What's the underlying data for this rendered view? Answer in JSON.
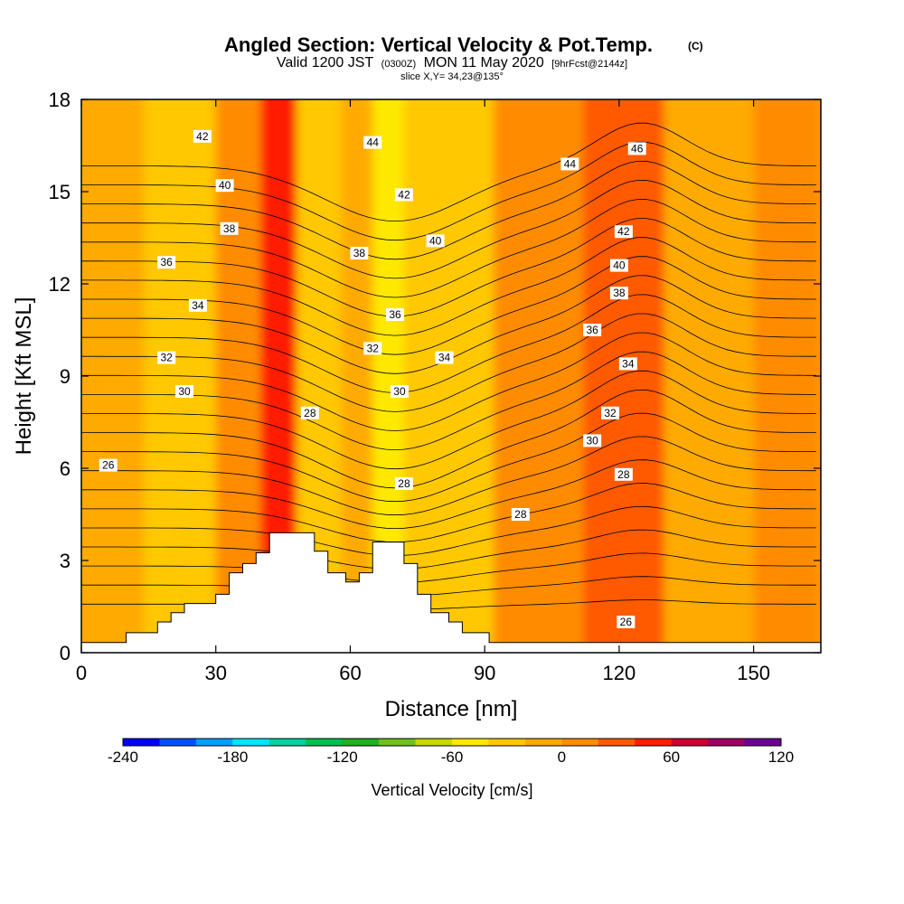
{
  "title": {
    "main": "Angled Section: Vertical Velocity & Pot.Temp.",
    "unit_tag": "(C)",
    "valid_part1": "Valid 1200 JST",
    "valid_small": "(0300Z)",
    "valid_part2": "MON 11 May 2020",
    "fcst_small": "[9hrFcst@2144z]",
    "slice": "slice X,Y= 34,23@135°"
  },
  "chart_data": {
    "type": "heatmap",
    "xlabel": "Distance [nm]",
    "ylabel": "Height [Kft MSL]",
    "xlim": [
      0,
      165
    ],
    "ylim": [
      0,
      18
    ],
    "x_ticks": [
      0,
      30,
      60,
      90,
      120,
      150
    ],
    "y_ticks": [
      0,
      3,
      6,
      9,
      12,
      15,
      18
    ],
    "colorbar": {
      "label": "Vertical Velocity [cm/s]",
      "min": -240,
      "max": 120,
      "step": 20,
      "tick_values": [
        -240,
        -180,
        -120,
        -60,
        0,
        60,
        120
      ],
      "tick_labels": [
        "-240",
        "-180",
        "-120",
        "-60",
        "0",
        "60",
        "120"
      ],
      "colors": [
        "#0000ff",
        "#0050ff",
        "#00a0ff",
        "#00e6ff",
        "#00d2a0",
        "#00c050",
        "#20b020",
        "#70c020",
        "#c8d800",
        "#ffe800",
        "#ffc800",
        "#ffaa00",
        "#ff8c00",
        "#ff5a00",
        "#ff1e00",
        "#d20032",
        "#a00064",
        "#6e0096"
      ]
    },
    "field_bands": [
      {
        "x": [
          0,
          14
        ],
        "w": 10,
        "shade": "#ffaa00"
      },
      {
        "x": [
          14,
          30
        ],
        "w": -5,
        "shade": "#ffc800"
      },
      {
        "x": [
          30,
          40
        ],
        "w": 15,
        "shade": "#ff8c00"
      },
      {
        "x": [
          40,
          48
        ],
        "w": 55,
        "shade": "#ff1e00"
      },
      {
        "x": [
          48,
          58
        ],
        "w": -10,
        "shade": "#ffc800"
      },
      {
        "x": [
          58,
          65
        ],
        "w": 10,
        "shade": "#ffaa00"
      },
      {
        "x": [
          65,
          72
        ],
        "w": -45,
        "shade": "#ffe800"
      },
      {
        "x": [
          72,
          92
        ],
        "w": -5,
        "shade": "#ffc800"
      },
      {
        "x": [
          92,
          112
        ],
        "w": 20,
        "shade": "#ff8c00"
      },
      {
        "x": [
          112,
          130
        ],
        "w": 35,
        "shade": "#ff5a00"
      },
      {
        "x": [
          130,
          150
        ],
        "w": 10,
        "shade": "#ffaa00"
      },
      {
        "x": [
          150,
          165
        ],
        "w": 5,
        "shade": "#ff8c00"
      }
    ],
    "contour_interval": 1,
    "contour_labels": [
      {
        "value": "26",
        "x": 6,
        "y": 6.1
      },
      {
        "value": "28",
        "x": 51,
        "y": 7.8
      },
      {
        "value": "28",
        "x": 72,
        "y": 5.5
      },
      {
        "value": "28",
        "x": 98,
        "y": 4.5
      },
      {
        "value": "28",
        "x": 121,
        "y": 5.8
      },
      {
        "value": "26",
        "x": 121.5,
        "y": 1.0
      },
      {
        "value": "30",
        "x": 23,
        "y": 8.5
      },
      {
        "value": "30",
        "x": 71,
        "y": 8.5
      },
      {
        "value": "30",
        "x": 114,
        "y": 6.9
      },
      {
        "value": "32",
        "x": 19,
        "y": 9.6
      },
      {
        "value": "32",
        "x": 65,
        "y": 9.9
      },
      {
        "value": "32",
        "x": 118,
        "y": 7.8
      },
      {
        "value": "34",
        "x": 26,
        "y": 11.3
      },
      {
        "value": "34",
        "x": 81,
        "y": 9.6
      },
      {
        "value": "34",
        "x": 122,
        "y": 9.4
      },
      {
        "value": "36",
        "x": 19,
        "y": 12.7
      },
      {
        "value": "36",
        "x": 70,
        "y": 11.0
      },
      {
        "value": "36",
        "x": 114,
        "y": 10.5
      },
      {
        "value": "38",
        "x": 33,
        "y": 13.8
      },
      {
        "value": "38",
        "x": 62,
        "y": 13.0
      },
      {
        "value": "38",
        "x": 120,
        "y": 11.7
      },
      {
        "value": "40",
        "x": 32,
        "y": 15.2
      },
      {
        "value": "40",
        "x": 79,
        "y": 13.4
      },
      {
        "value": "40",
        "x": 120,
        "y": 12.6
      },
      {
        "value": "42",
        "x": 27,
        "y": 16.8
      },
      {
        "value": "42",
        "x": 72,
        "y": 14.9
      },
      {
        "value": "42",
        "x": 121,
        "y": 13.7
      },
      {
        "value": "44",
        "x": 65,
        "y": 16.6
      },
      {
        "value": "44",
        "x": 109,
        "y": 15.9
      },
      {
        "value": "46",
        "x": 124,
        "y": 16.4
      }
    ],
    "terrain": [
      [
        0,
        0.33
      ],
      [
        10,
        0.33
      ],
      [
        10,
        0.65
      ],
      [
        17,
        0.65
      ],
      [
        17,
        1.0
      ],
      [
        20,
        1.0
      ],
      [
        20,
        1.3
      ],
      [
        23,
        1.3
      ],
      [
        23,
        1.6
      ],
      [
        30,
        1.6
      ],
      [
        30,
        1.9
      ],
      [
        33,
        1.9
      ],
      [
        33,
        2.6
      ],
      [
        36,
        2.6
      ],
      [
        36,
        2.9
      ],
      [
        39,
        2.9
      ],
      [
        39,
        3.25
      ],
      [
        42,
        3.25
      ],
      [
        42,
        3.9
      ],
      [
        52,
        3.9
      ],
      [
        52,
        3.3
      ],
      [
        55,
        3.3
      ],
      [
        55,
        2.6
      ],
      [
        59,
        2.6
      ],
      [
        59,
        2.3
      ],
      [
        62,
        2.3
      ],
      [
        62,
        2.6
      ],
      [
        65,
        2.6
      ],
      [
        65,
        3.6
      ],
      [
        72,
        3.6
      ],
      [
        72,
        2.9
      ],
      [
        75,
        2.9
      ],
      [
        75,
        1.9
      ],
      [
        78,
        1.9
      ],
      [
        78,
        1.3
      ],
      [
        82,
        1.3
      ],
      [
        82,
        1.0
      ],
      [
        85,
        1.0
      ],
      [
        85,
        0.65
      ],
      [
        91,
        0.65
      ],
      [
        91,
        0.33
      ],
      [
        165,
        0.33
      ]
    ]
  }
}
